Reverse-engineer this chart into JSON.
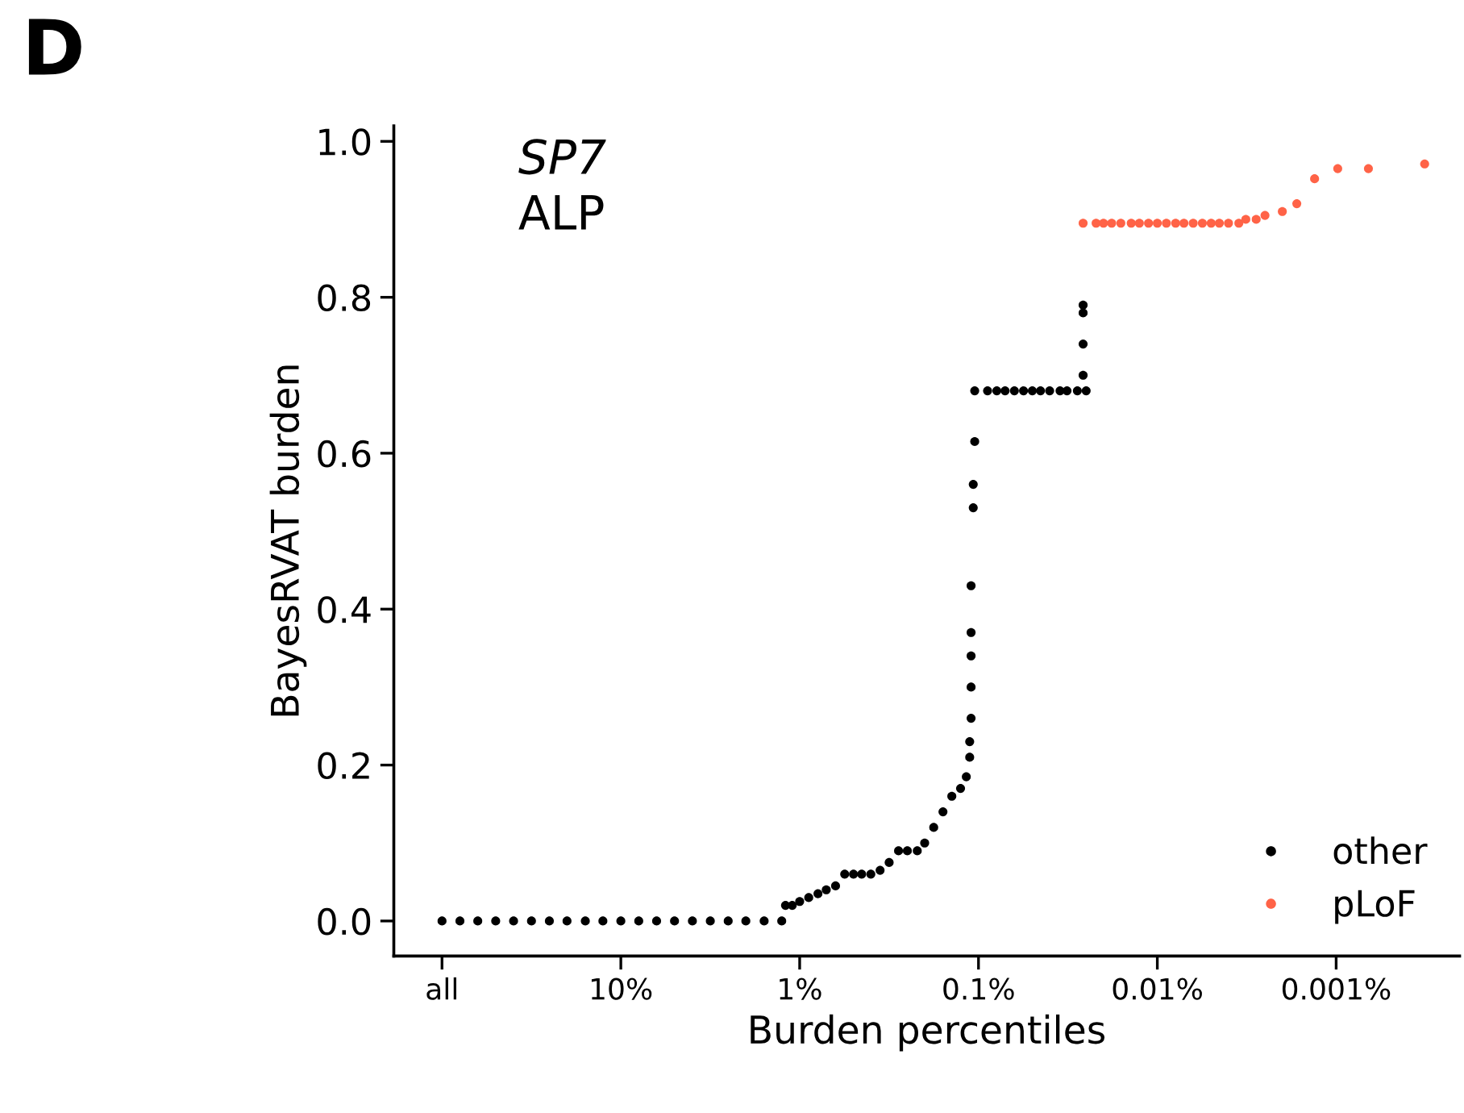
{
  "chart_data": {
    "type": "scatter",
    "xlabel": "Burden percentiles",
    "ylabel": "BayesRVAT burden",
    "annotations": [
      "D",
      "SP7",
      "ALP"
    ],
    "log": "x",
    "xlim": [
      186,
      0.000204
    ],
    "ylim": [
      -0.045,
      1.02
    ],
    "xticks": [
      {
        "value": 100,
        "label": "all"
      },
      {
        "value": 10,
        "label": "10%"
      },
      {
        "value": 1,
        "label": "1%"
      },
      {
        "value": 0.1,
        "label": "0.1%"
      },
      {
        "value": 0.01,
        "label": "0.01%"
      },
      {
        "value": 0.001,
        "label": "0.001%"
      }
    ],
    "yticks": [
      {
        "value": 0,
        "label": "0.0"
      },
      {
        "value": 0.2,
        "label": "0.2"
      },
      {
        "value": 0.4,
        "label": "0.4"
      },
      {
        "value": 0.6,
        "label": "0.6"
      },
      {
        "value": 0.8,
        "label": "0.8"
      },
      {
        "value": 1,
        "label": "1.0"
      }
    ],
    "grid": false,
    "legend": "bottom right",
    "marker": "circle",
    "series": [
      {
        "name": "other",
        "color": "#000000",
        "x": [
          100,
          79.4,
          63.1,
          50.1,
          39.8,
          31.6,
          25.1,
          20,
          15.8,
          12.6,
          10,
          7.94,
          6.31,
          5.01,
          3.98,
          3.16,
          2.51,
          2.0,
          1.58,
          1.26,
          1.2,
          1.1,
          1.0,
          0.89,
          0.79,
          0.71,
          0.63,
          0.56,
          0.5,
          0.45,
          0.4,
          0.355,
          0.316,
          0.28,
          0.25,
          0.22,
          0.2,
          0.178,
          0.158,
          0.141,
          0.126,
          0.117,
          0.112,
          0.112,
          0.11,
          0.11,
          0.11,
          0.11,
          0.11,
          0.107,
          0.107,
          0.105,
          0.105,
          0.089,
          0.079,
          0.071,
          0.063,
          0.056,
          0.05,
          0.045,
          0.04,
          0.035,
          0.032,
          0.028,
          0.025,
          0.026,
          0.026,
          0.026,
          0.026
        ],
        "values": [
          0,
          0,
          0,
          0,
          0,
          0,
          0,
          0,
          0,
          0,
          0,
          0,
          0,
          0,
          0,
          0,
          0,
          0,
          0,
          0,
          0.02,
          0.02,
          0.025,
          0.03,
          0.035,
          0.04,
          0.045,
          0.06,
          0.06,
          0.06,
          0.06,
          0.065,
          0.075,
          0.09,
          0.09,
          0.09,
          0.1,
          0.12,
          0.14,
          0.16,
          0.17,
          0.185,
          0.21,
          0.23,
          0.26,
          0.3,
          0.34,
          0.37,
          0.43,
          0.53,
          0.56,
          0.615,
          0.68,
          0.68,
          0.68,
          0.68,
          0.68,
          0.68,
          0.68,
          0.68,
          0.68,
          0.68,
          0.68,
          0.68,
          0.68,
          0.7,
          0.74,
          0.78,
          0.79
        ]
      },
      {
        "name": "pLoF",
        "color": "#ff6347",
        "x": [
          0.026,
          0.022,
          0.02,
          0.018,
          0.016,
          0.014,
          0.0126,
          0.0112,
          0.01,
          0.0089,
          0.0079,
          0.0071,
          0.0063,
          0.0056,
          0.005,
          0.0045,
          0.004,
          0.0035,
          0.0032,
          0.0028,
          0.0025,
          0.002,
          0.00166,
          0.00132,
          0.00098,
          0.00066,
          0.00032
        ],
        "values": [
          0.895,
          0.895,
          0.895,
          0.895,
          0.895,
          0.895,
          0.895,
          0.895,
          0.895,
          0.895,
          0.895,
          0.895,
          0.895,
          0.895,
          0.895,
          0.895,
          0.895,
          0.895,
          0.9,
          0.9,
          0.905,
          0.91,
          0.92,
          0.952,
          0.965,
          0.965,
          0.971
        ]
      }
    ]
  }
}
